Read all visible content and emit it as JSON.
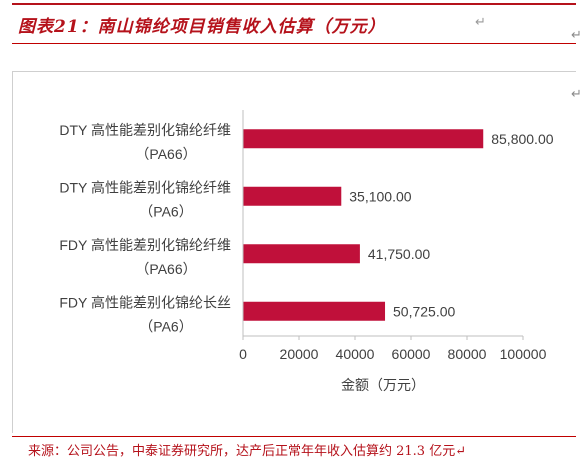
{
  "header": {
    "title": "图表21：南山锦纶项目销售收入估算（万元）",
    "return_mark": "↵"
  },
  "chart_data": {
    "type": "bar",
    "orientation": "horizontal",
    "categories": [
      [
        "DTY 高性能差别化锦纶纤维",
        "（PA66）"
      ],
      [
        "DTY 高性能差别化锦纶纤维",
        "（PA6）"
      ],
      [
        "FDY 高性能差别化锦纶纤维",
        "（PA66）"
      ],
      [
        "FDY 高性能差别化锦纶长丝",
        "（PA6）"
      ]
    ],
    "values": [
      85800,
      35100,
      41750,
      50725
    ],
    "value_labels": [
      "85,800.00",
      "35,100.00",
      "41,750.00",
      "50,725.00"
    ],
    "xlabel": "金额（万元）",
    "xlim": [
      0,
      100000
    ],
    "xticks": [
      0,
      20000,
      40000,
      60000,
      80000,
      100000
    ],
    "grid": false,
    "bar_color": "#c0103a"
  },
  "footer": {
    "source": "来源：公司公告，中泰证券研究所，达产后正常年年收入估算约 21.3 亿元↵"
  }
}
